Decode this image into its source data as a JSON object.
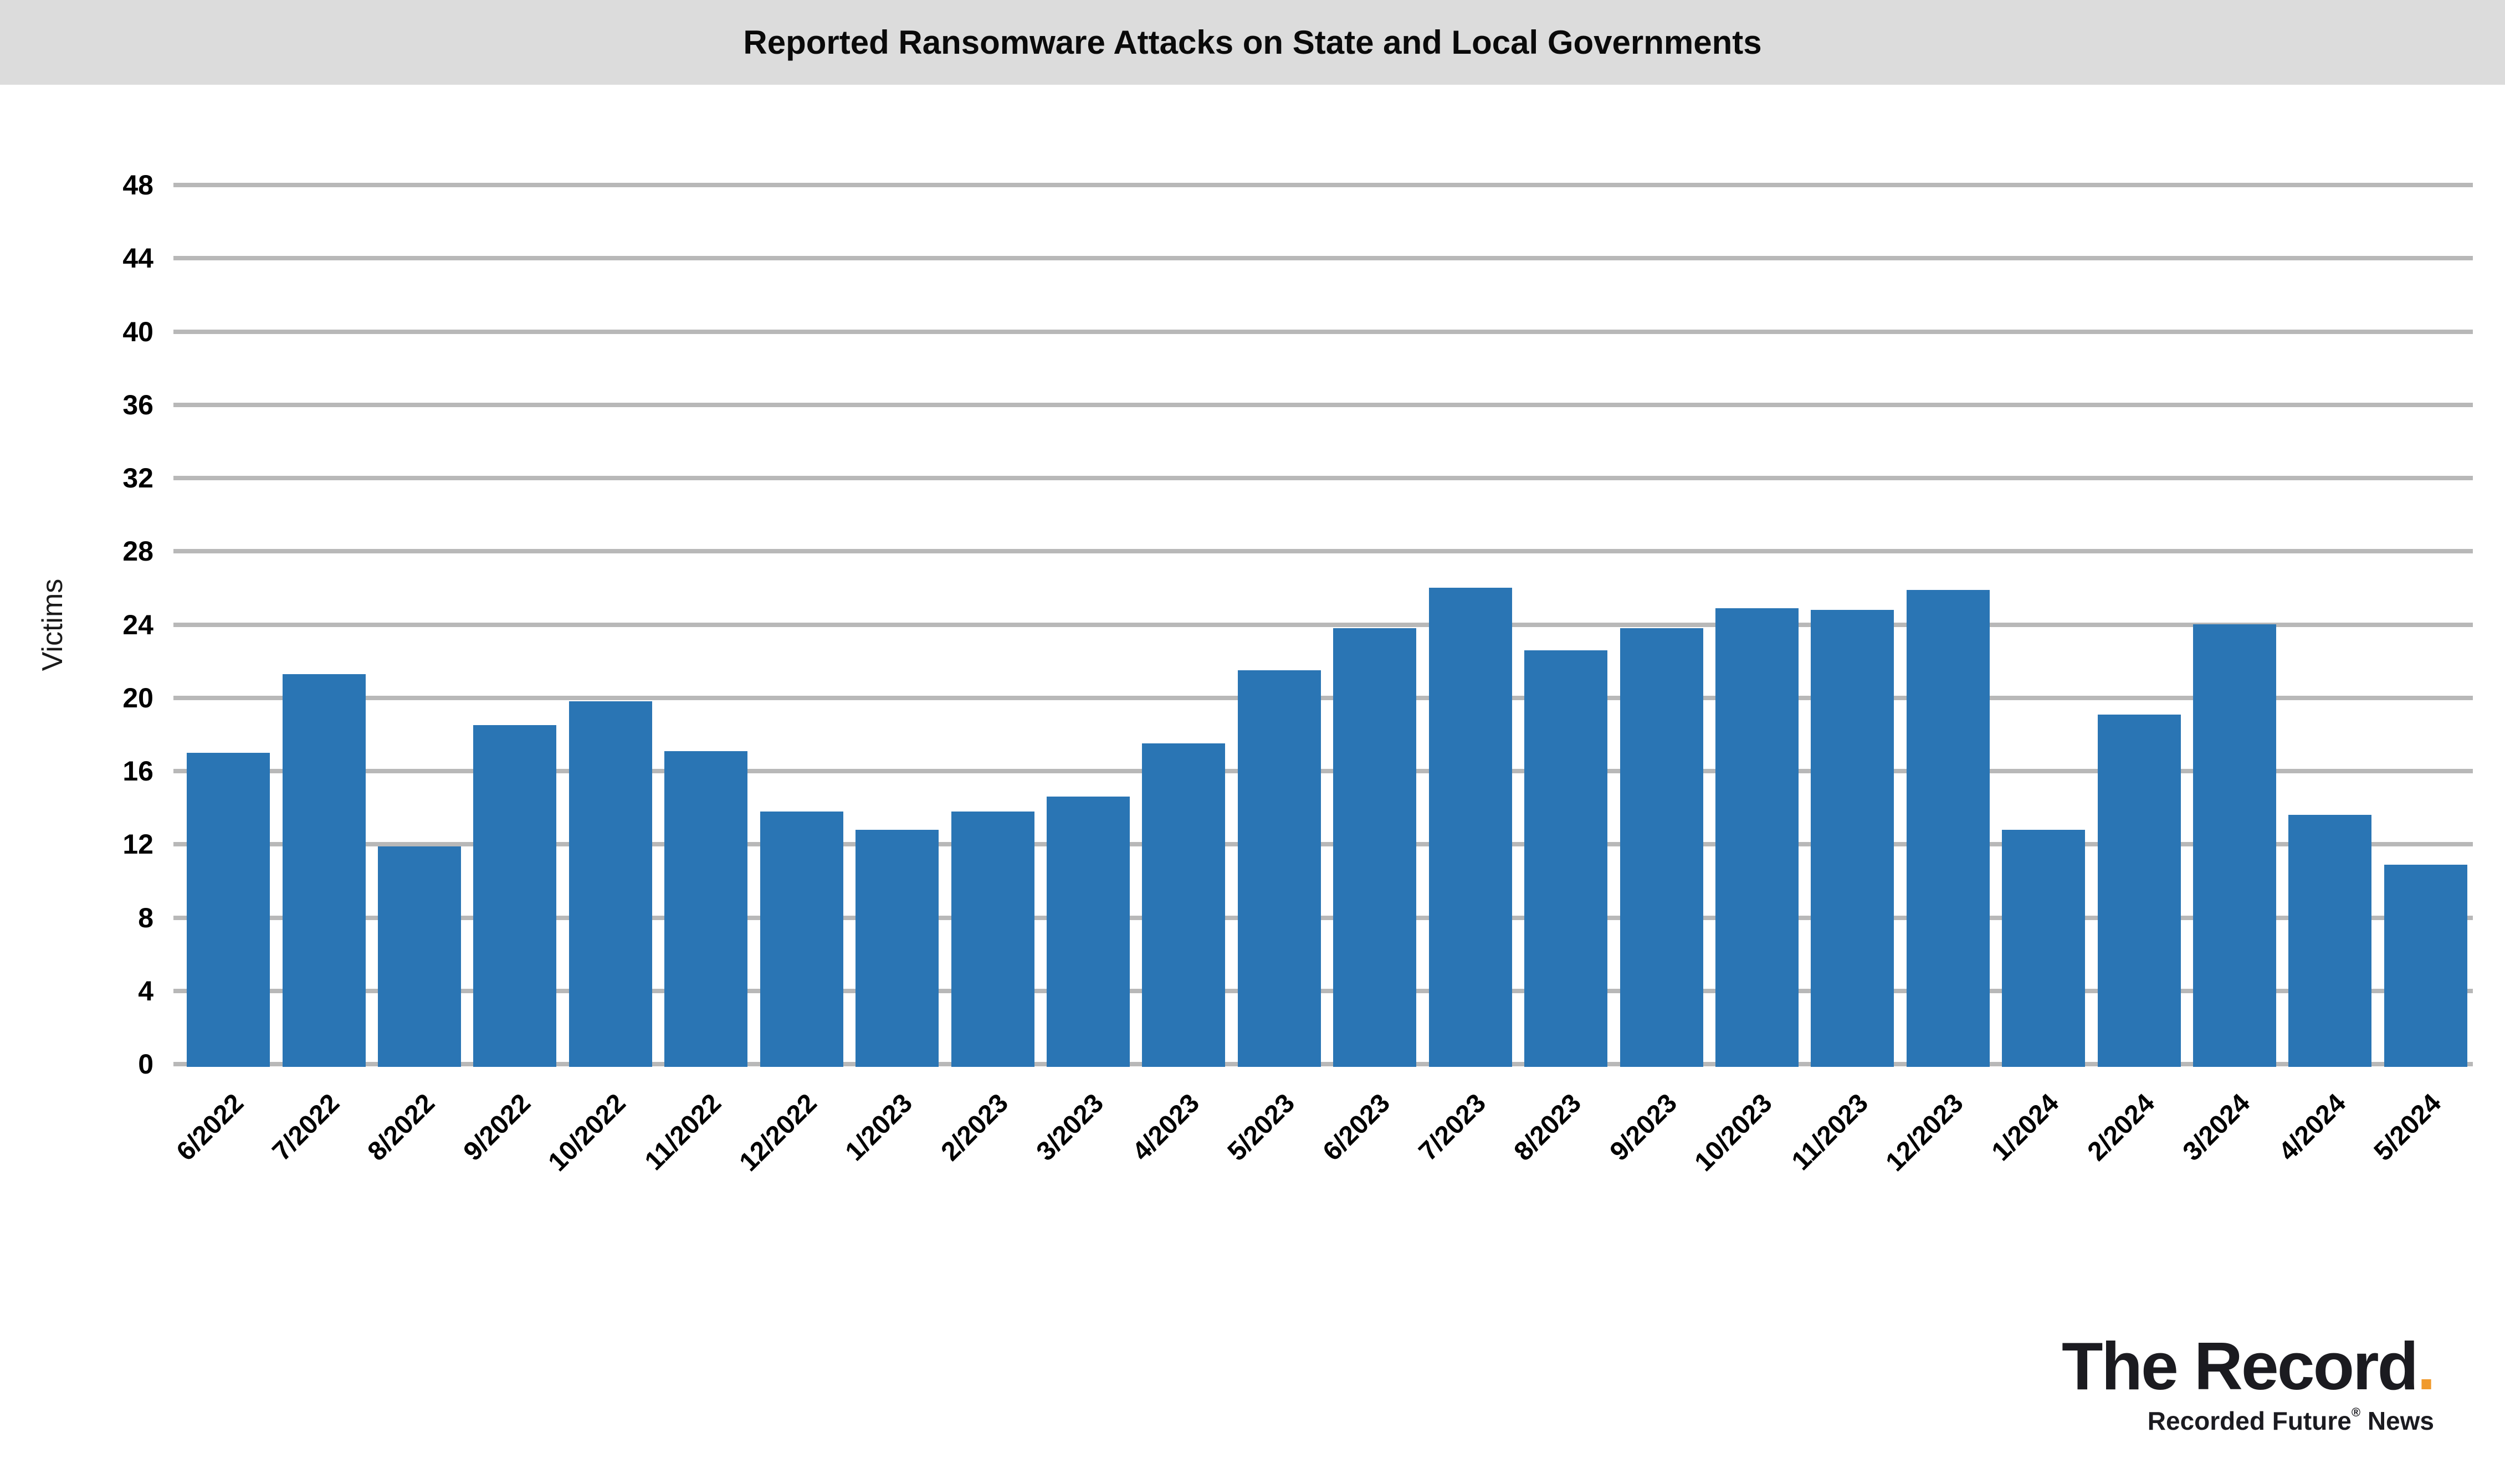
{
  "header": {
    "title": "Reported Ransomware Attacks on State and Local Governments"
  },
  "chart_data": {
    "type": "bar",
    "title": "Reported Ransomware Attacks on State and Local Governments",
    "xlabel": "",
    "ylabel": "Victims",
    "categories": [
      "6/2022",
      "7/2022",
      "8/2022",
      "9/2022",
      "10/2022",
      "11/2022",
      "12/2022",
      "1/2023",
      "2/2023",
      "3/2023",
      "4/2023",
      "5/2023",
      "6/2023",
      "7/2023",
      "8/2023",
      "9/2023",
      "10/2023",
      "11/2023",
      "12/2023",
      "1/2024",
      "2/2024",
      "3/2024",
      "4/2024",
      "5/2024"
    ],
    "values": [
      17.0,
      21.3,
      11.9,
      18.5,
      19.8,
      17.1,
      13.8,
      12.8,
      13.8,
      14.6,
      17.5,
      21.5,
      23.8,
      26.0,
      22.6,
      23.8,
      24.9,
      24.8,
      25.9,
      12.8,
      19.1,
      24.0,
      13.6,
      10.9
    ],
    "ylim": [
      0,
      48
    ],
    "yticks": [
      0,
      4,
      8,
      12,
      16,
      20,
      24,
      28,
      32,
      36,
      40,
      44,
      48
    ],
    "grid": "horizontal",
    "legend": "none",
    "bar_color": "#2a75b4",
    "gridline_color": "#b8b8b8"
  },
  "logo": {
    "brand": "The Record",
    "brand_dot": ".",
    "dot_color": "#f09a2c",
    "tagline_main": "Recorded Future",
    "tagline_reg": "®",
    "tagline_suffix": " News"
  },
  "colors": {
    "header_bg": "#dcdcdc",
    "background": "#ffffff",
    "text": "#000000"
  }
}
